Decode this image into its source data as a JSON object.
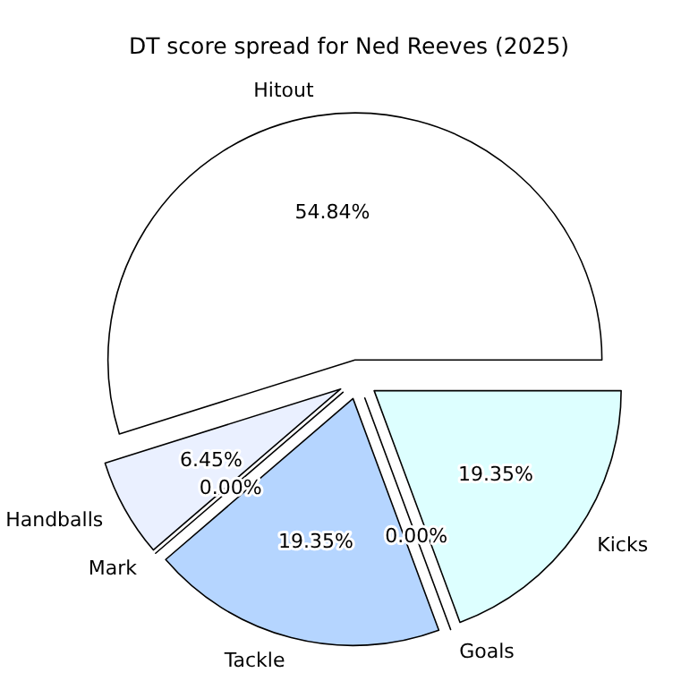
{
  "chart_data": {
    "type": "pie",
    "title": "DT score spread for Ned Reeves (2025)",
    "categories": [
      "Hitout",
      "Handballs",
      "Mark",
      "Tackle",
      "Goals",
      "Kicks"
    ],
    "values": [
      54.84,
      6.45,
      0.0,
      19.35,
      0.0,
      19.35
    ],
    "colors": [
      "#ffffff",
      "#eaf0ff",
      "#d9e6ff",
      "#b5d5ff",
      "#cce8ff",
      "#ddffff"
    ],
    "value_labels": [
      "54.84%",
      "6.45%",
      "0.00%",
      "19.35%",
      "0.00%",
      "19.35%"
    ]
  }
}
